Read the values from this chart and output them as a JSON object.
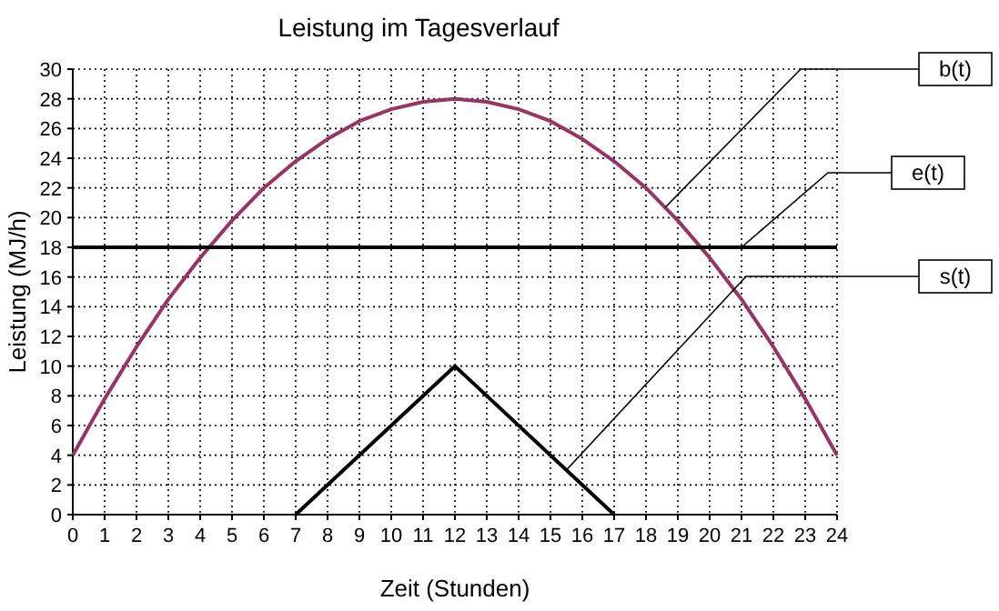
{
  "chart_data": {
    "type": "line",
    "title": "Leistung im Tagesverlauf",
    "xlabel": "Zeit (Stunden)",
    "ylabel": "Leistung (MJ/h)",
    "xlim": [
      0,
      24
    ],
    "xticks": [
      0,
      1,
      2,
      3,
      4,
      5,
      6,
      7,
      8,
      9,
      10,
      11,
      12,
      13,
      14,
      15,
      16,
      17,
      18,
      19,
      20,
      21,
      22,
      23,
      24
    ],
    "ylim": [
      0,
      30
    ],
    "yticks": [
      0,
      2,
      4,
      6,
      8,
      10,
      12,
      14,
      16,
      18,
      20,
      22,
      24,
      26,
      28,
      30
    ],
    "grid": true,
    "marker": "none",
    "line_style": "solid",
    "legend": false,
    "series": [
      {
        "name": "b(t)",
        "color": "#993366",
        "x": [
          0,
          1,
          2,
          3,
          4,
          5,
          6,
          7,
          8,
          9,
          10,
          11,
          12,
          13,
          14,
          15,
          16,
          17,
          18,
          19,
          20,
          21,
          22,
          23,
          24
        ],
        "values": [
          4,
          7.8,
          11.3,
          14.5,
          17.3,
          19.8,
          22,
          23.8,
          25.3,
          26.5,
          27.3,
          27.8,
          28,
          27.8,
          27.3,
          26.5,
          25.3,
          23.8,
          22,
          19.8,
          17.3,
          14.5,
          11.3,
          7.8,
          4
        ]
      },
      {
        "name": "e(t)",
        "color": "#000000",
        "x": [
          0,
          24
        ],
        "values": [
          18,
          18
        ]
      },
      {
        "name": "s(t)",
        "color": "#000000",
        "x": [
          7,
          12,
          17
        ],
        "values": [
          0,
          10,
          0
        ]
      }
    ]
  }
}
